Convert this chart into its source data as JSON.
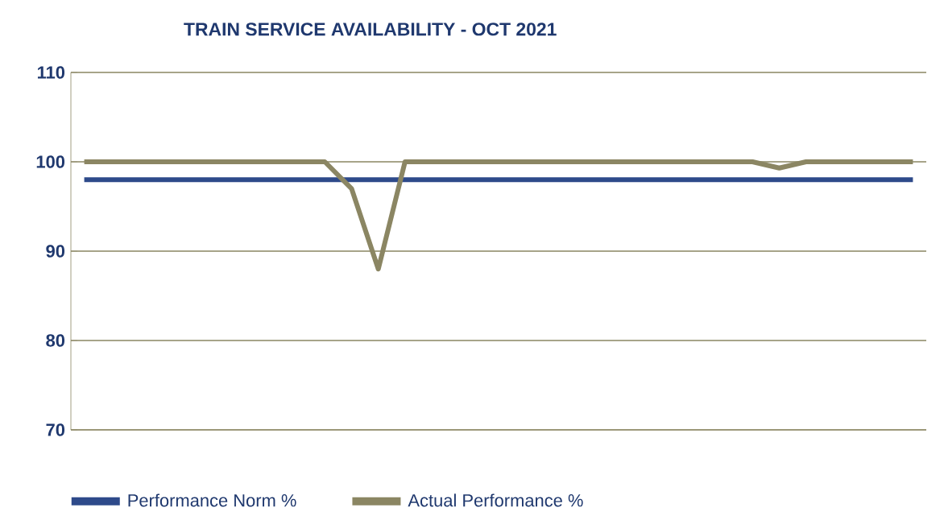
{
  "chart_data": {
    "type": "line",
    "title": "TRAIN SERVICE AVAILABILITY  - OCT 2021",
    "categories": [
      null,
      null,
      null,
      null,
      null,
      null,
      null,
      null,
      null,
      null,
      null,
      null,
      null,
      null,
      null,
      null,
      null,
      null,
      null,
      null,
      null,
      null,
      null,
      null,
      null,
      null,
      null,
      null,
      null,
      null,
      null,
      null
    ],
    "series": [
      {
        "name": "Performance Norm %",
        "color": "#2e4a8a",
        "values": [
          98,
          98,
          98,
          98,
          98,
          98,
          98,
          98,
          98,
          98,
          98,
          98,
          98,
          98,
          98,
          98,
          98,
          98,
          98,
          98,
          98,
          98,
          98,
          98,
          98,
          98,
          98,
          98,
          98,
          98,
          98,
          98
        ]
      },
      {
        "name": "Actual Performance %",
        "color": "#8b8663",
        "values": [
          100,
          100,
          100,
          100,
          100,
          100,
          100,
          100,
          100,
          100,
          97,
          88,
          100,
          100,
          100,
          100,
          100,
          100,
          100,
          100,
          100,
          100,
          100,
          100,
          100,
          100,
          99.3,
          100,
          100,
          100,
          100,
          100
        ]
      }
    ],
    "ylim": [
      70,
      110
    ],
    "yticks": [
      70,
      80,
      90,
      100,
      110
    ],
    "grid": "y",
    "legend": "bottom"
  }
}
